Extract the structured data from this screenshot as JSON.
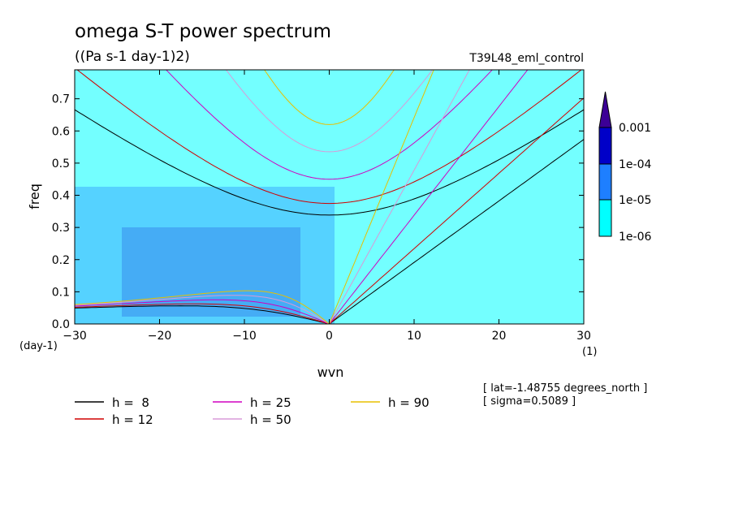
{
  "chart_data": {
    "type": "heatmap",
    "title": "omega S-T power spectrum",
    "subtitle": "((Pa s-1 day-1)2)",
    "run_label": "T39L48_eml_control",
    "xlabel": "wvn",
    "ylabel": "freq",
    "x_unit": "(1)",
    "y_unit": "(day-1)",
    "xlim": [
      -30,
      30
    ],
    "ylim": [
      0,
      0.79
    ],
    "x_ticks": [
      -30,
      -20,
      -10,
      0,
      10,
      20,
      30
    ],
    "x_tick_labels": [
      "−30",
      "−20",
      "−10",
      "0",
      "10",
      "20",
      "30"
    ],
    "y_ticks": [
      0,
      0.1,
      0.2,
      0.3,
      0.4,
      0.5,
      0.6,
      0.7
    ],
    "y_tick_labels": [
      "0.0",
      "0.1",
      "0.2",
      "0.3",
      "0.4",
      "0.5",
      "0.6",
      "0.7"
    ],
    "colorbar": {
      "levels": [
        "1e-06",
        "1e-05",
        "1e-04",
        "0.001"
      ],
      "colors": [
        "#ffffff",
        "#00ffff",
        "#1e7fff",
        "#0000c8",
        "#3c0096"
      ]
    },
    "dispersion_curves": [
      {
        "label": "h =  8",
        "h": 8,
        "color": "#000000"
      },
      {
        "label": "h = 12",
        "h": 12,
        "color": "#d00000"
      },
      {
        "label": "h = 25",
        "h": 25,
        "color": "#d000c0"
      },
      {
        "label": "h = 50",
        "h": 50,
        "color": "#d89ad8"
      },
      {
        "label": "h = 90",
        "h": 90,
        "color": "#e8c000"
      }
    ],
    "annotations": [
      "[ lat=-1.48755 degrees_north ]",
      "[ sigma=0.5089 ]"
    ]
  }
}
